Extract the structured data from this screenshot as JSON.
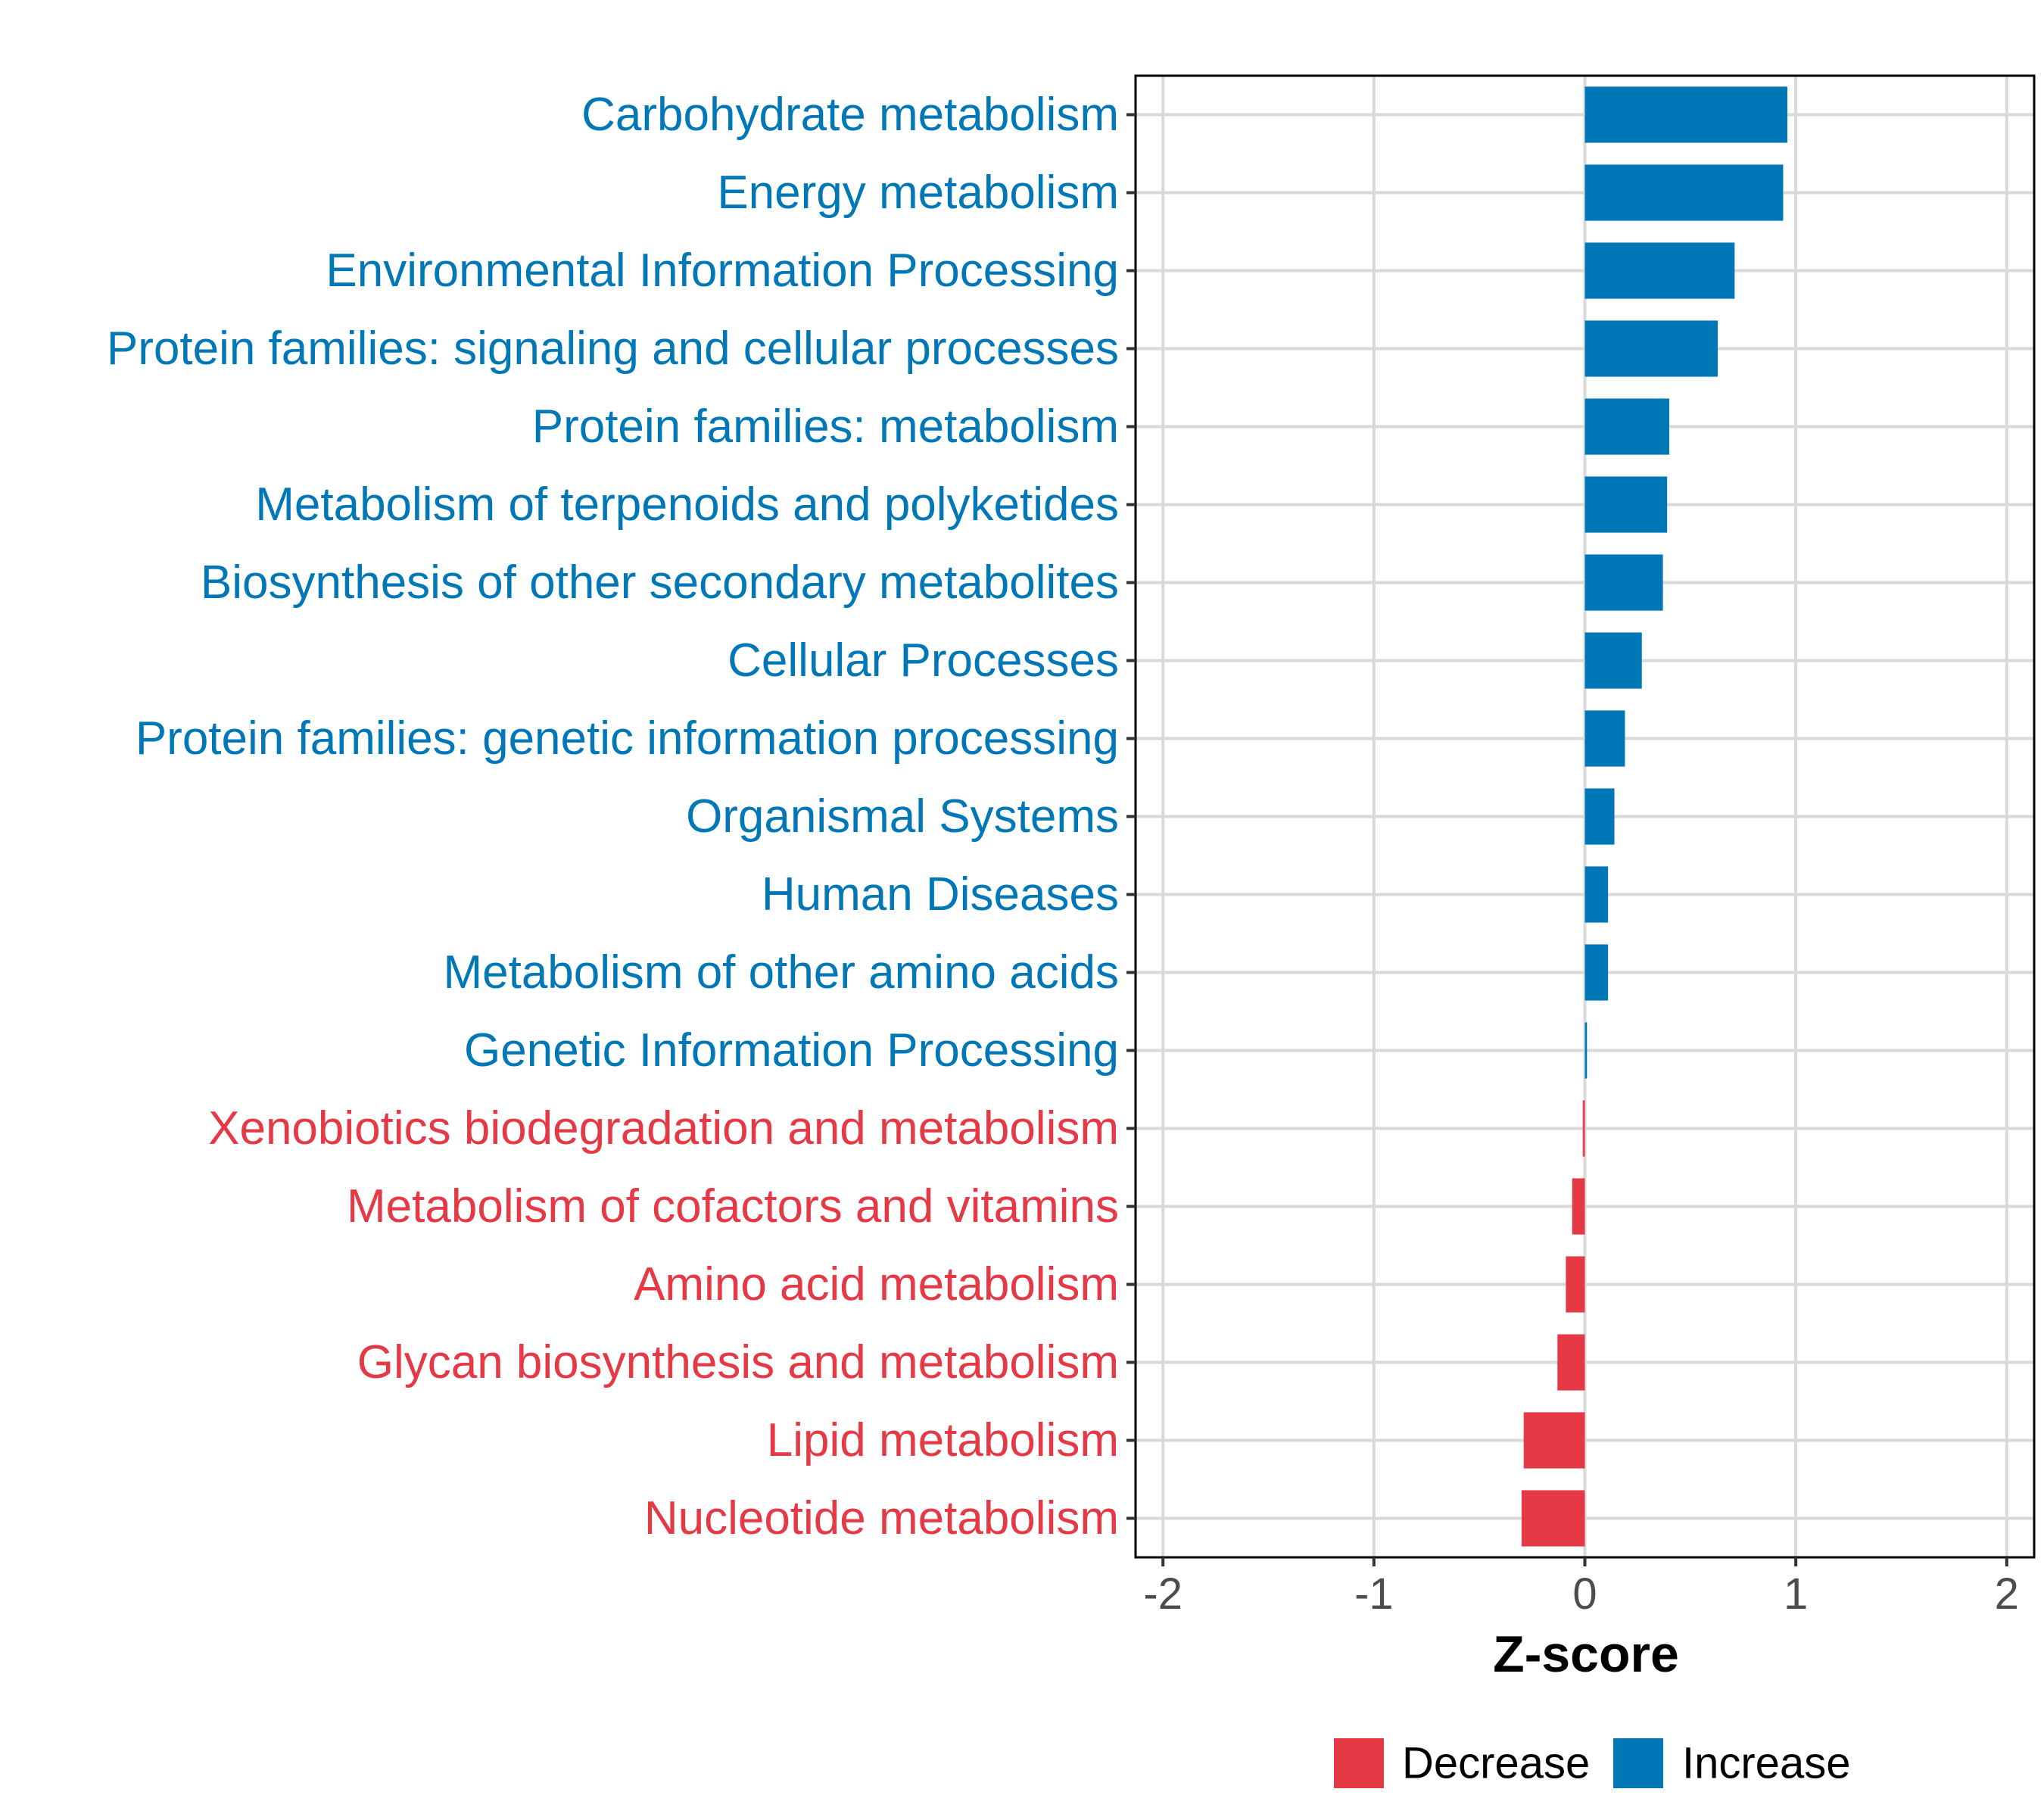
{
  "chart_data": {
    "type": "bar",
    "orientation": "horizontal",
    "title": "",
    "xlabel": "Z-score",
    "ylabel": "",
    "xlim": [
      -2.13,
      2.13
    ],
    "xticks": [
      -2,
      -1,
      0,
      1,
      2
    ],
    "xtick_labels": [
      "-2",
      "-1",
      "0",
      "1",
      "2"
    ],
    "grid": true,
    "legend_position": "bottom",
    "colors": {
      "Decrease": "#e63946",
      "Increase": "#0077b6"
    },
    "legend": [
      {
        "label": "Decrease",
        "color": "#e63946"
      },
      {
        "label": "Increase",
        "color": "#0077b6"
      }
    ],
    "categories": [
      "Carbohydrate metabolism",
      "Energy metabolism",
      "Environmental Information Processing",
      "Protein families: signaling and cellular processes",
      "Protein families: metabolism",
      "Metabolism of terpenoids and polyketides",
      "Biosynthesis of other secondary metabolites",
      "Cellular Processes",
      "Protein families: genetic information processing",
      "Organismal Systems",
      "Human Diseases",
      "Metabolism of other amino acids",
      "Genetic Information Processing",
      "Xenobiotics biodegradation and metabolism",
      "Metabolism of cofactors and vitamins",
      "Amino acid metabolism",
      "Glycan biosynthesis and metabolism",
      "Lipid metabolism",
      "Nucleotide metabolism"
    ],
    "values": [
      0.96,
      0.94,
      0.71,
      0.63,
      0.4,
      0.39,
      0.37,
      0.27,
      0.19,
      0.14,
      0.11,
      0.11,
      0.01,
      -0.01,
      -0.06,
      -0.09,
      -0.13,
      -0.29,
      -0.3
    ],
    "groups": [
      "Increase",
      "Increase",
      "Increase",
      "Increase",
      "Increase",
      "Increase",
      "Increase",
      "Increase",
      "Increase",
      "Increase",
      "Increase",
      "Increase",
      "Increase",
      "Decrease",
      "Decrease",
      "Decrease",
      "Decrease",
      "Decrease",
      "Decrease"
    ]
  }
}
